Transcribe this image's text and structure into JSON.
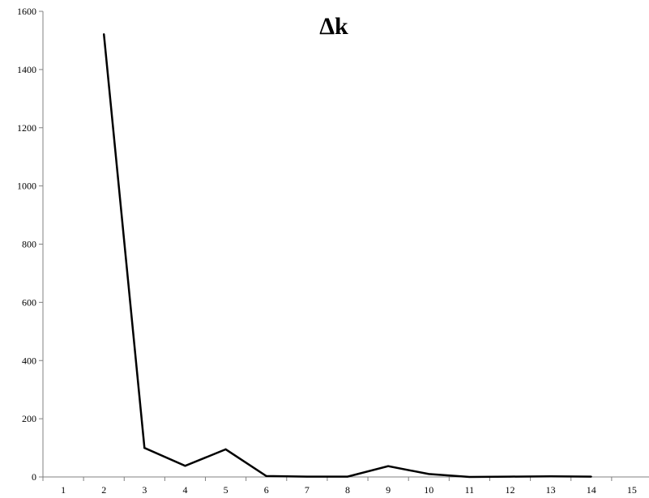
{
  "chart_data": {
    "type": "line",
    "title": "Δk",
    "xlabel": "",
    "ylabel": "",
    "x": [
      1,
      2,
      3,
      4,
      5,
      6,
      7,
      8,
      9,
      10,
      11,
      12,
      13,
      14,
      15
    ],
    "xlim": [
      0.5,
      15.5
    ],
    "ylim": [
      0,
      1600
    ],
    "y_ticks": [
      0,
      200,
      400,
      600,
      800,
      1000,
      1200,
      1400,
      1600
    ],
    "grid": false,
    "legend": "none",
    "series": [
      {
        "x": [
          2,
          3,
          4,
          5,
          6,
          7,
          8,
          9,
          10,
          11,
          12,
          13,
          14
        ],
        "values": [
          1522,
          100,
          38,
          95,
          3,
          1,
          1,
          37,
          10,
          0,
          1,
          2,
          1
        ],
        "color": "#000000"
      }
    ]
  }
}
